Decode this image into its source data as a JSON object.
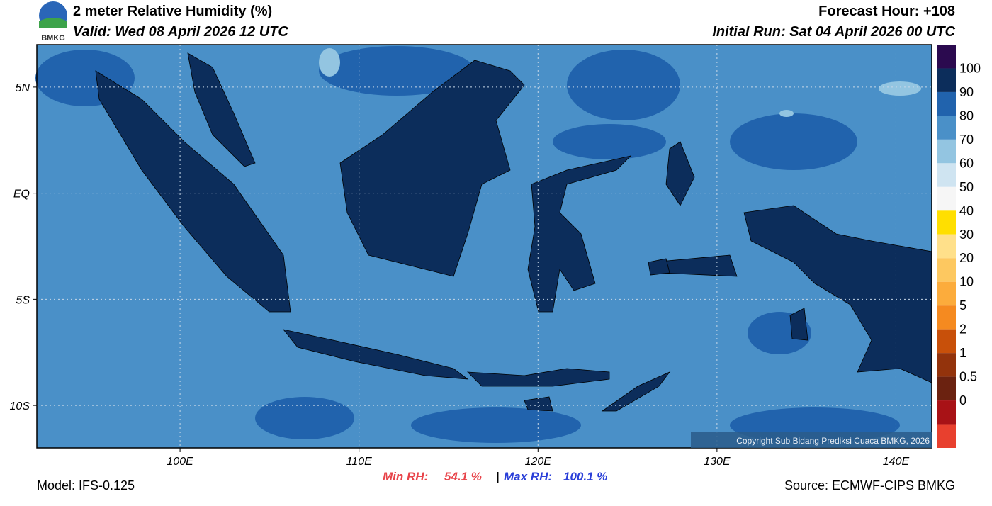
{
  "header": {
    "title": "2 meter Relative Humidity (%)",
    "valid": "Valid: Wed 08 April 2026 12 UTC",
    "forecast_hour": "Forecast Hour: +108",
    "initial_run": "Initial Run: Sat 04 April 2026 00 UTC",
    "logo_text": "BMKG"
  },
  "map": {
    "lon_range": [
      92,
      142
    ],
    "lat_range": [
      -12,
      7
    ],
    "lon_ticks": [
      {
        "value": 100,
        "label": "100E"
      },
      {
        "value": 110,
        "label": "110E"
      },
      {
        "value": 120,
        "label": "120E"
      },
      {
        "value": 130,
        "label": "130E"
      },
      {
        "value": 140,
        "label": "140E"
      }
    ],
    "lat_ticks": [
      {
        "value": 5,
        "label": "5N"
      },
      {
        "value": 0,
        "label": "EQ"
      },
      {
        "value": -5,
        "label": "5S"
      },
      {
        "value": -10,
        "label": "10S"
      }
    ],
    "copyright": "Copyright Sub Bidang Prediksi Cuaca BMKG, 2026"
  },
  "colorbar": {
    "colors": [
      "#2b0a4f",
      "#0c2d5b",
      "#2163ad",
      "#4a90c8",
      "#93c5e1",
      "#cfe4f1",
      "#f6f6f6",
      "#ffdf00",
      "#ffe08a",
      "#fdc860",
      "#fcac3c",
      "#f58a20",
      "#c8500a",
      "#93330c",
      "#6b2210",
      "#a81216",
      "#e8402e"
    ],
    "labels": [
      100,
      90,
      80,
      70,
      60,
      50,
      40,
      30,
      20,
      10,
      5,
      2,
      1,
      0.5,
      0
    ]
  },
  "footer": {
    "model": "Model: IFS-0.125",
    "min_rh_label": "Min RH:",
    "min_rh_value": "54.1 %",
    "separator": "|",
    "max_rh_label": "Max RH:",
    "max_rh_value": "100.1 %",
    "source": "Source: ECMWF-CIPS BMKG"
  }
}
